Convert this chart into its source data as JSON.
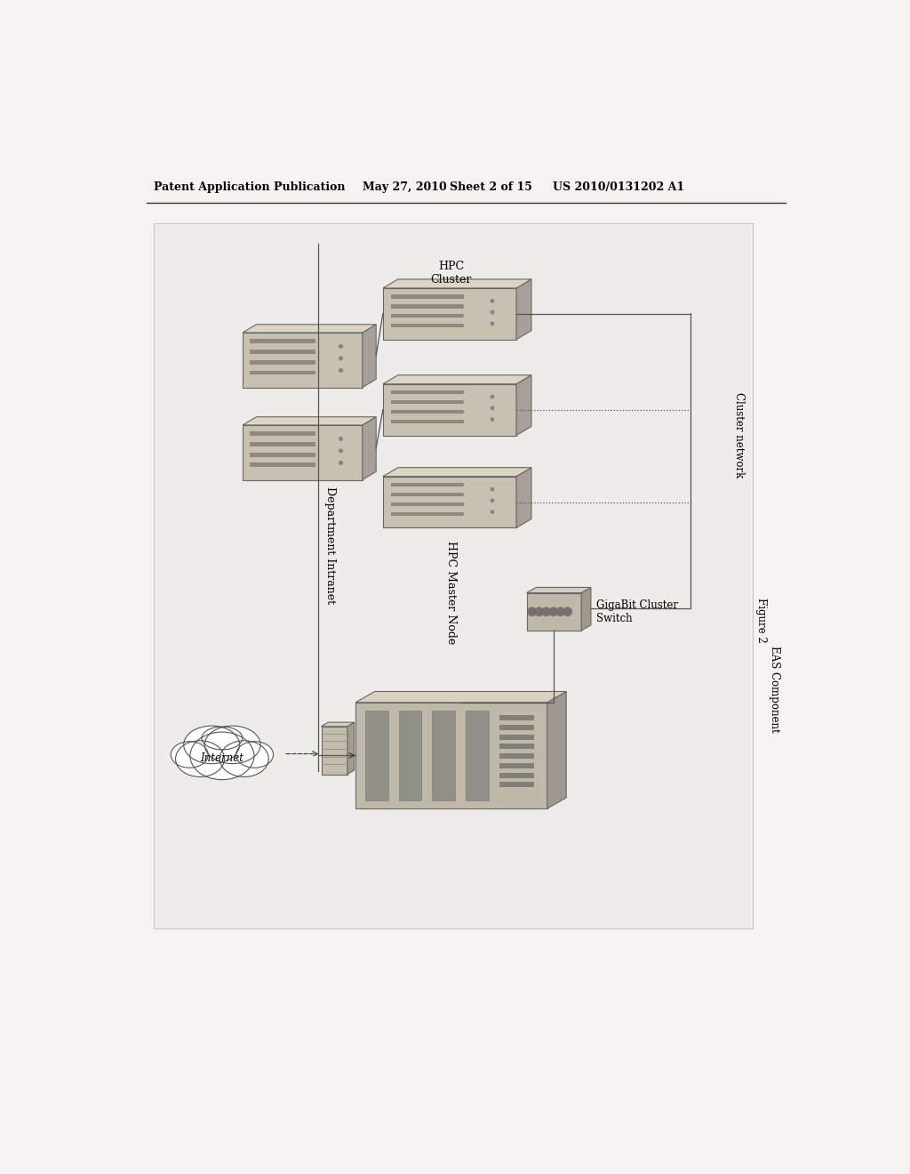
{
  "page_bg": "#f5f3ef",
  "header_text": "Patent Application Publication",
  "header_date": "May 27, 2010",
  "header_sheet": "Sheet 2 of 15",
  "header_patent": "US 2010/0131202 A1",
  "figure_label": "Figure 2",
  "figure_sublabel": "EAS Component",
  "label_cluster_network": "Cluster network",
  "label_dept_intranet": "Department Intranet",
  "label_hpc_master": "HPC Master Node",
  "label_hpc_cluster": "HPC\nCluster",
  "label_gigabit": "GigaBit Cluster\nSwitch",
  "label_internet": "Internet",
  "fc_face": "#c8c0b0",
  "fc_side": "#a8a098",
  "fc_top": "#dcd4c4",
  "fc_stripe": "#989088",
  "switch_face": "#c0b8a8",
  "switch_side": "#a0988a",
  "switch_top": "#d4ccc0",
  "router_face": "#c4bcac",
  "router_side": "#a49c8c",
  "router_top": "#d8d0c0"
}
